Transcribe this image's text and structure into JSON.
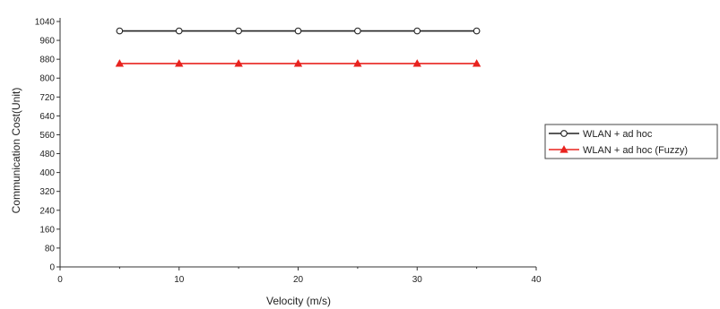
{
  "chart_data": {
    "type": "line",
    "title": "",
    "xlabel": "Velocity (m/s)",
    "ylabel": "Communication Cost(Unit)",
    "xlim": [
      0,
      40
    ],
    "ylim": [
      0,
      1040
    ],
    "xticks": [
      0,
      10,
      20,
      30,
      40
    ],
    "yticks": [
      0,
      80,
      160,
      240,
      320,
      400,
      480,
      560,
      640,
      720,
      800,
      880,
      960,
      1040
    ],
    "grid": false,
    "legend_position": "right",
    "x": [
      5,
      10,
      15,
      20,
      25,
      30,
      35
    ],
    "series": [
      {
        "name": "WLAN + ad hoc",
        "values": [
          1000,
          1000,
          1000,
          1000,
          1000,
          1000,
          1000
        ],
        "color": "#222222",
        "marker": "open-circle"
      },
      {
        "name": "WLAN + ad hoc (Fuzzy)",
        "values": [
          862,
          862,
          862,
          862,
          862,
          862,
          862
        ],
        "color": "#e8231f",
        "marker": "filled-triangle"
      }
    ]
  }
}
